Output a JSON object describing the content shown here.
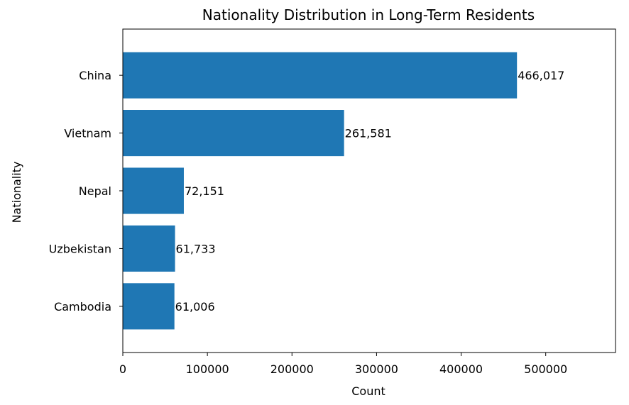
{
  "chart_data": {
    "type": "bar",
    "orientation": "horizontal",
    "title": "Nationality Distribution in Long-Term Residents",
    "xlabel": "Count",
    "ylabel": "Nationality",
    "categories": [
      "China",
      "Vietnam",
      "Nepal",
      "Uzbekistan",
      "Cambodia"
    ],
    "values": [
      466017,
      261581,
      72151,
      61733,
      61006
    ],
    "value_labels": [
      "466,017",
      "261,581",
      "72,151",
      "61,733",
      "61,006"
    ],
    "xlim": [
      0,
      582521
    ],
    "xticks": [
      0,
      100000,
      200000,
      300000,
      400000,
      500000
    ],
    "xtick_labels": [
      "0",
      "100000",
      "200000",
      "300000",
      "400000",
      "500000"
    ],
    "bar_color": "#1f77b4",
    "grid": false,
    "legend": "none"
  }
}
